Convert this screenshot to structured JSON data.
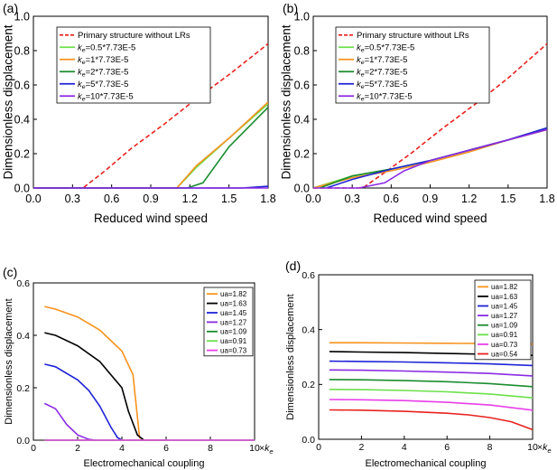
{
  "figure_kind": "four-panel line chart",
  "chart_data": [
    {
      "panel": "(a)",
      "type": "line",
      "xlabel": "Reduced wind speed",
      "ylabel": "Dimensionless displacement",
      "xlim": [
        0.0,
        1.8
      ],
      "ylim": [
        0.0,
        1.0
      ],
      "xticks": [
        0.0,
        0.3,
        0.6,
        0.9,
        1.2,
        1.5,
        1.8
      ],
      "yticks": [
        0.0,
        0.2,
        0.4,
        0.6,
        0.8,
        1.0
      ],
      "xtick_labels": [
        "0.0",
        "0.3",
        "0.6",
        "0.9",
        "1.2",
        "1.5",
        "1.8"
      ],
      "ytick_labels": [
        "0.0",
        "0.2",
        "0.4",
        "0.6",
        "0.8",
        "1.0"
      ],
      "legend_position": "top-left",
      "series": [
        {
          "name": "Primary structure without LRs",
          "color": "#e8231e",
          "dash": true,
          "x": [
            0.0,
            0.38,
            0.55,
            0.75,
            1.0,
            1.25,
            1.5,
            1.8
          ],
          "y": [
            0.0,
            0.0,
            0.1,
            0.23,
            0.37,
            0.52,
            0.66,
            0.84
          ]
        },
        {
          "name": "0.5*7.73E-5",
          "prefix": "k",
          "sub": "e",
          "color": "#6ce04a",
          "x": [
            0.0,
            1.1,
            1.25,
            1.5,
            1.8
          ],
          "y": [
            0.0,
            0.0,
            0.12,
            0.29,
            0.49
          ]
        },
        {
          "name": "1*7.73E-5",
          "prefix": "k",
          "sub": "e",
          "color": "#f7931e",
          "x": [
            0.0,
            1.1,
            1.25,
            1.5,
            1.8
          ],
          "y": [
            0.0,
            0.0,
            0.13,
            0.29,
            0.5
          ]
        },
        {
          "name": "2*7.73E-5",
          "prefix": "k",
          "sub": "e",
          "color": "#1a8c2e",
          "x": [
            0.0,
            1.18,
            1.3,
            1.5,
            1.8
          ],
          "y": [
            0.0,
            0.0,
            0.03,
            0.24,
            0.47
          ]
        },
        {
          "name": "5*7.73E-5",
          "prefix": "k",
          "sub": "e",
          "color": "#1f23d6",
          "x": [
            0.0,
            1.6,
            1.8
          ],
          "y": [
            0.0,
            0.0,
            0.01
          ]
        },
        {
          "name": "10*7.73E-5",
          "prefix": "k",
          "sub": "e",
          "color": "#8a2be2",
          "x": [
            0.0,
            1.8
          ],
          "y": [
            0.0,
            0.0
          ]
        }
      ]
    },
    {
      "panel": "(b)",
      "type": "line",
      "xlabel": "Reduced wind speed",
      "ylabel": "Dimensionless displacement",
      "xlim": [
        0.0,
        1.8
      ],
      "ylim": [
        0.0,
        1.0
      ],
      "xticks": [
        0.0,
        0.3,
        0.6,
        0.9,
        1.2,
        1.5,
        1.8
      ],
      "yticks": [
        0.0,
        0.2,
        0.4,
        0.6,
        0.8,
        1.0
      ],
      "xtick_labels": [
        "0.0",
        "0.3",
        "0.6",
        "0.9",
        "1.2",
        "1.5",
        "1.8"
      ],
      "ytick_labels": [
        "0.0",
        "0.2",
        "0.4",
        "0.6",
        "0.8",
        "1.0"
      ],
      "legend_position": "top-left",
      "series": [
        {
          "name": "Primary structure without LRs",
          "color": "#e8231e",
          "dash": true,
          "x": [
            0.0,
            0.38,
            0.55,
            0.75,
            1.0,
            1.25,
            1.5,
            1.8
          ],
          "y": [
            0.0,
            0.0,
            0.09,
            0.2,
            0.35,
            0.49,
            0.64,
            0.84
          ]
        },
        {
          "name": "0.5*7.73E-5",
          "prefix": "k",
          "sub": "e",
          "color": "#6ce04a",
          "x": [
            0.0,
            0.3,
            0.6,
            0.9,
            1.2,
            1.5,
            1.8
          ],
          "y": [
            0.0,
            0.07,
            0.11,
            0.16,
            0.22,
            0.28,
            0.34
          ]
        },
        {
          "name": "1*7.73E-5",
          "prefix": "k",
          "sub": "e",
          "color": "#f7931e",
          "x": [
            0.0,
            0.3,
            0.6,
            0.9,
            1.2,
            1.5,
            1.8
          ],
          "y": [
            0.0,
            0.06,
            0.1,
            0.15,
            0.21,
            0.28,
            0.34
          ]
        },
        {
          "name": "2*7.73E-5",
          "prefix": "k",
          "sub": "e",
          "color": "#1a8c2e",
          "x": [
            0.05,
            0.3,
            0.6,
            0.9,
            1.2,
            1.5,
            1.8
          ],
          "y": [
            0.0,
            0.07,
            0.11,
            0.16,
            0.22,
            0.28,
            0.35
          ]
        },
        {
          "name": "5*7.73E-5",
          "prefix": "k",
          "sub": "e",
          "color": "#1f23d6",
          "x": [
            0.1,
            0.3,
            0.6,
            0.9,
            1.2,
            1.5,
            1.8
          ],
          "y": [
            0.0,
            0.05,
            0.11,
            0.16,
            0.22,
            0.28,
            0.35
          ]
        },
        {
          "name": "10*7.73E-5",
          "prefix": "k",
          "sub": "e",
          "color": "#8a2be2",
          "x": [
            0.0,
            0.35,
            0.55,
            0.7,
            0.9,
            1.2,
            1.5,
            1.8
          ],
          "y": [
            0.0,
            0.0,
            0.03,
            0.1,
            0.16,
            0.22,
            0.28,
            0.34
          ]
        }
      ]
    },
    {
      "panel": "(c)",
      "type": "line",
      "xlabel": "Electromechanical coupling",
      "ylabel": "Dimensionless displacement",
      "xunit_prefix": "×",
      "xunit_k": "k",
      "xunit_sub": "e",
      "xlim": [
        0,
        10
      ],
      "ylim": [
        0.0,
        0.6
      ],
      "xticks": [
        0,
        2,
        4,
        6,
        8,
        10
      ],
      "yticks": [
        0.0,
        0.2,
        0.4,
        0.6
      ],
      "xtick_labels": [
        "0",
        "2",
        "4",
        "6",
        "8",
        "10"
      ],
      "ytick_labels": [
        "0.0",
        "0.2",
        "0.4",
        "0.6"
      ],
      "legend_position": "top-right",
      "series": [
        {
          "name": "ua=1.82",
          "color": "#f7931e",
          "x": [
            0.5,
            1,
            2,
            3,
            4,
            4.5,
            4.8,
            5,
            6
          ],
          "y": [
            0.51,
            0.5,
            0.47,
            0.42,
            0.34,
            0.25,
            0.01,
            0.0,
            0.0
          ]
        },
        {
          "name": "ua=1.63",
          "color": "#000000",
          "x": [
            0.5,
            1,
            2,
            3,
            4,
            4.3,
            4.7,
            5
          ],
          "y": [
            0.41,
            0.4,
            0.36,
            0.3,
            0.2,
            0.11,
            0.02,
            0.0
          ]
        },
        {
          "name": "ua=1.45",
          "color": "#1f23d6",
          "x": [
            0.5,
            1,
            2,
            2.5,
            3,
            3.5,
            3.8,
            4
          ],
          "y": [
            0.29,
            0.28,
            0.23,
            0.19,
            0.13,
            0.05,
            0.01,
            0.0
          ]
        },
        {
          "name": "ua=1.27",
          "color": "#8a2be2",
          "x": [
            0.5,
            1,
            1.5,
            2,
            2.5,
            2.8
          ],
          "y": [
            0.14,
            0.12,
            0.06,
            0.02,
            0.003,
            0.0
          ]
        },
        {
          "name": "ua=1.09",
          "color": "#1a8c2e",
          "x": [
            0.5,
            10
          ],
          "y": [
            0.0,
            0.0
          ]
        },
        {
          "name": "ua=0.91",
          "color": "#6ce04a",
          "x": [
            0.5,
            10
          ],
          "y": [
            0.0,
            0.0
          ]
        },
        {
          "name": "ua=0.73",
          "color": "#e83fe8",
          "x": [
            0.5,
            10
          ],
          "y": [
            0.0,
            0.0
          ]
        }
      ]
    },
    {
      "panel": "(d)",
      "type": "line",
      "xlabel": "Electromechanical coupling",
      "ylabel": "Dimensionless displacement",
      "xunit_prefix": "×",
      "xunit_k": "k",
      "xunit_sub": "e",
      "xlim": [
        0,
        10
      ],
      "ylim": [
        0.0,
        0.6
      ],
      "xticks": [
        0,
        2,
        4,
        6,
        8,
        10
      ],
      "yticks": [
        0.0,
        0.2,
        0.4,
        0.6
      ],
      "xtick_labels": [
        "0",
        "2",
        "4",
        "6",
        "8",
        "10"
      ],
      "ytick_labels": [
        "0.0",
        "0.2",
        "0.4",
        "0.6"
      ],
      "legend_position": "top-right",
      "series": [
        {
          "name": "ua=1.82",
          "color": "#f7931e",
          "x": [
            0.5,
            2,
            4,
            6,
            8,
            10
          ],
          "y": [
            0.352,
            0.352,
            0.351,
            0.35,
            0.349,
            0.347
          ]
        },
        {
          "name": "ua=1.63",
          "color": "#000000",
          "x": [
            0.5,
            2,
            4,
            6,
            8,
            10
          ],
          "y": [
            0.32,
            0.318,
            0.316,
            0.313,
            0.31,
            0.306
          ]
        },
        {
          "name": "ua=1.45",
          "color": "#1f23d6",
          "x": [
            0.5,
            2,
            4,
            6,
            8,
            10
          ],
          "y": [
            0.285,
            0.284,
            0.282,
            0.279,
            0.275,
            0.269
          ]
        },
        {
          "name": "ua=1.27",
          "color": "#8a2be2",
          "x": [
            0.5,
            2,
            4,
            6,
            8,
            10
          ],
          "y": [
            0.253,
            0.252,
            0.249,
            0.245,
            0.24,
            0.231
          ]
        },
        {
          "name": "ua=1.09",
          "color": "#1a8c2e",
          "x": [
            0.5,
            2,
            4,
            6,
            8,
            10
          ],
          "y": [
            0.218,
            0.217,
            0.214,
            0.21,
            0.203,
            0.192
          ]
        },
        {
          "name": "ua=0.91",
          "color": "#6ce04a",
          "x": [
            0.5,
            2,
            4,
            6,
            8,
            10
          ],
          "y": [
            0.182,
            0.181,
            0.178,
            0.173,
            0.165,
            0.151
          ]
        },
        {
          "name": "ua=0.73",
          "color": "#e83fe8",
          "x": [
            0.5,
            2,
            4,
            6,
            8,
            10
          ],
          "y": [
            0.145,
            0.144,
            0.141,
            0.135,
            0.125,
            0.106
          ]
        },
        {
          "name": "ua=0.54",
          "color": "#e8231e",
          "x": [
            0.5,
            2,
            4,
            6,
            7,
            8,
            9,
            10
          ],
          "y": [
            0.107,
            0.106,
            0.102,
            0.095,
            0.089,
            0.079,
            0.064,
            0.035
          ]
        }
      ]
    }
  ]
}
